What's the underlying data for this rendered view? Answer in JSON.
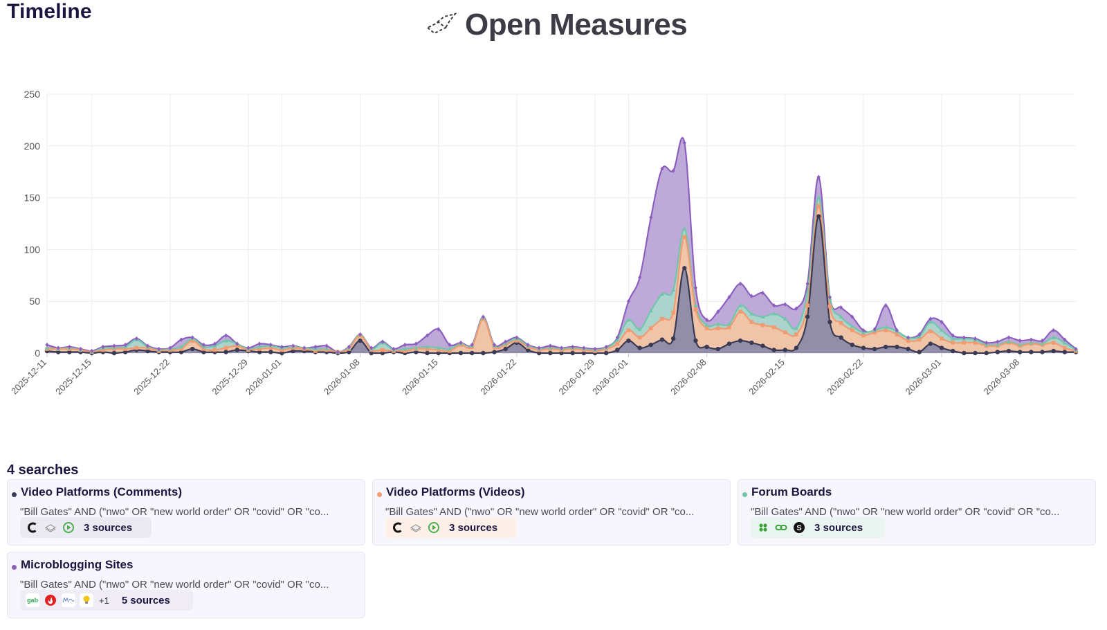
{
  "header": {
    "title": "Timeline",
    "brand_name": "Open Measures"
  },
  "colors": {
    "microblogging": "#b9a3d6",
    "microblogging_line": "#8c5fbf",
    "forum": "#a9d8cb",
    "forum_line": "#72c4ad",
    "videos": "#f5c2a4",
    "videos_line": "#f29a70",
    "comments": "#8d8ba6",
    "comments_line": "#3b3a55"
  },
  "chart_data": {
    "type": "area",
    "stacked": true,
    "title": "",
    "xlabel": "",
    "ylabel": "",
    "ylim": [
      0,
      250
    ],
    "yticks": [
      0,
      50,
      100,
      150,
      200,
      250
    ],
    "x_start": "2025-12-11",
    "x_end": "2026-03-12",
    "x_tick_labels": [
      {
        "label": "2025-12-11",
        "day": 0
      },
      {
        "label": "2025-12-15",
        "day": 4
      },
      {
        "label": "2025-12-22",
        "day": 11
      },
      {
        "label": "2025-12-29",
        "day": 18
      },
      {
        "label": "2026-01-01",
        "day": 21
      },
      {
        "label": "2026-01-08",
        "day": 28
      },
      {
        "label": "2026-01-15",
        "day": 35
      },
      {
        "label": "2026-01-22",
        "day": 42
      },
      {
        "label": "2026-01-29",
        "day": 49
      },
      {
        "label": "2026-02-01",
        "day": 52
      },
      {
        "label": "2026-02-08",
        "day": 59
      },
      {
        "label": "2026-02-15",
        "day": 66
      },
      {
        "label": "2026-02-22",
        "day": 73
      },
      {
        "label": "2026-03-01",
        "day": 80
      },
      {
        "label": "2026-03-08",
        "day": 87
      }
    ],
    "series": [
      {
        "name": "Video Platforms (Comments)",
        "values": [
          2,
          1,
          1,
          1,
          0,
          1,
          0,
          1,
          3,
          2,
          1,
          1,
          1,
          4,
          1,
          1,
          1,
          3,
          2,
          1,
          1,
          0,
          2,
          2,
          1,
          1,
          0,
          1,
          12,
          0,
          0,
          1,
          0,
          1,
          0,
          0,
          0,
          0,
          0,
          0,
          1,
          4,
          10,
          3,
          0,
          0,
          0,
          0,
          0,
          0,
          0,
          3,
          12,
          5,
          8,
          13,
          14,
          82,
          12,
          6,
          4,
          9,
          12,
          10,
          7,
          3,
          3,
          5,
          35,
          132,
          30,
          15,
          8,
          5,
          4,
          6,
          6,
          4,
          1,
          9,
          5,
          2,
          0,
          0,
          0,
          1,
          2,
          1,
          1,
          1,
          2,
          1,
          1
        ]
      },
      {
        "name": "Video Platforms (Videos)",
        "values": [
          2,
          3,
          3,
          2,
          1,
          2,
          4,
          3,
          2,
          3,
          1,
          2,
          3,
          8,
          3,
          2,
          4,
          4,
          1,
          3,
          4,
          3,
          3,
          2,
          1,
          2,
          1,
          3,
          5,
          3,
          3,
          1,
          2,
          3,
          4,
          3,
          2,
          8,
          6,
          33,
          5,
          4,
          2,
          3,
          3,
          4,
          3,
          4,
          3,
          2,
          4,
          6,
          10,
          10,
          16,
          20,
          25,
          30,
          30,
          18,
          20,
          16,
          28,
          20,
          20,
          22,
          17,
          13,
          11,
          10,
          15,
          14,
          14,
          12,
          16,
          16,
          12,
          8,
          12,
          12,
          9,
          8,
          10,
          10,
          7,
          6,
          8,
          6,
          8,
          7,
          8,
          4,
          1
        ]
      },
      {
        "name": "Forum Boards",
        "values": [
          1,
          0,
          1,
          0,
          0,
          2,
          1,
          2,
          8,
          1,
          1,
          1,
          2,
          2,
          2,
          4,
          7,
          2,
          1,
          2,
          2,
          2,
          1,
          1,
          2,
          1,
          0,
          1,
          1,
          1,
          7,
          1,
          2,
          1,
          2,
          2,
          2,
          1,
          1,
          1,
          1,
          1,
          2,
          1,
          1,
          1,
          1,
          1,
          1,
          1,
          1,
          4,
          10,
          8,
          17,
          24,
          22,
          8,
          4,
          3,
          4,
          3,
          6,
          8,
          8,
          13,
          13,
          6,
          12,
          8,
          8,
          6,
          4,
          3,
          2,
          3,
          3,
          3,
          3,
          9,
          8,
          4,
          4,
          3,
          1,
          1,
          1,
          1,
          1,
          1,
          5,
          5,
          1
        ]
      },
      {
        "name": "Microblogging Sites",
        "values": [
          3,
          1,
          1,
          1,
          1,
          1,
          2,
          2,
          1,
          1,
          1,
          1,
          7,
          1,
          2,
          2,
          5,
          0,
          1,
          3,
          1,
          1,
          1,
          0,
          2,
          3,
          0,
          1,
          0,
          1,
          1,
          1,
          4,
          4,
          11,
          18,
          4,
          1,
          1,
          1,
          1,
          2,
          1,
          1,
          1,
          2,
          1,
          1,
          1,
          1,
          1,
          2,
          18,
          50,
          90,
          121,
          115,
          83,
          17,
          5,
          12,
          26,
          21,
          17,
          23,
          8,
          14,
          19,
          9,
          20,
          1,
          9,
          9,
          2,
          1,
          21,
          1,
          0,
          2,
          3,
          8,
          3,
          1,
          1,
          2,
          3,
          4,
          4,
          3,
          3,
          7,
          3,
          1
        ]
      }
    ]
  },
  "searches": {
    "heading": "4 searches",
    "items": [
      {
        "title": "Video Platforms (Comments)",
        "color": "#3b3a55",
        "query": "\"Bill Gates\" AND (\"nwo\" OR \"new world order\" OR \"covid\" OR \"co...",
        "sources_label": "3 sources",
        "source_icons": [
          "rumble-c-icon",
          "layers-icon",
          "play-icon"
        ]
      },
      {
        "title": "Video Platforms (Videos)",
        "color": "#f29a70",
        "query": "\"Bill Gates\" AND (\"nwo\" OR \"new world order\" OR \"covid\" OR \"co...",
        "sources_label": "3 sources",
        "source_icons": [
          "rumble-c-icon",
          "layers-icon",
          "play-icon"
        ]
      },
      {
        "title": "Forum Boards",
        "color": "#72c4ad",
        "query": "\"Bill Gates\" AND (\"nwo\" OR \"new world order\" OR \"covid\" OR \"co...",
        "sources_label": "3 sources",
        "source_icons": [
          "clover-icon",
          "chain-icon",
          "s-coin-icon"
        ]
      },
      {
        "title": "Microblogging Sites",
        "color": "#8c5fbf",
        "query": "\"Bill Gates\" AND (\"nwo\" OR \"new world order\" OR \"covid\" OR \"co...",
        "sources_label": "5 sources",
        "more_label": "+1",
        "gab_label": "gab",
        "source_icons": [
          "gab-icon",
          "flame-icon",
          "mewe-icon",
          "bulb-icon"
        ]
      }
    ]
  }
}
